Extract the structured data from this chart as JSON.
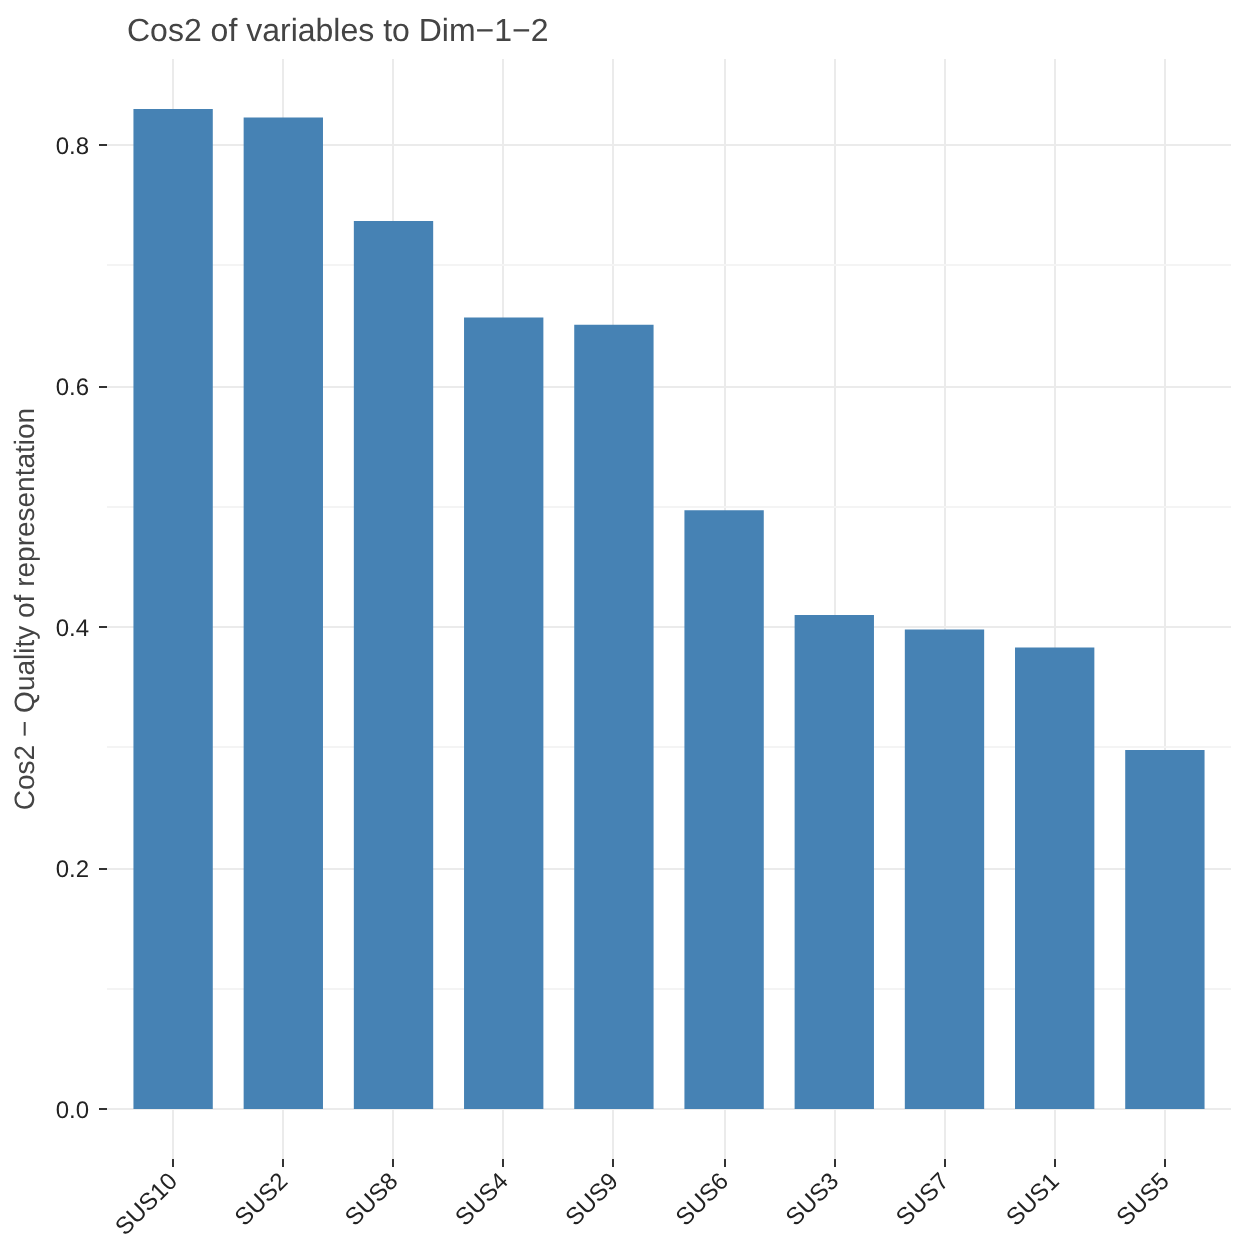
{
  "chart_data": {
    "type": "bar",
    "title": "Cos2 of variables to Dim−1−2",
    "ylabel": "Cos2 − Quality of representation",
    "categories": [
      "SUS10",
      "SUS2",
      "SUS8",
      "SUS4",
      "SUS9",
      "SUS6",
      "SUS3",
      "SUS7",
      "SUS1",
      "SUS5"
    ],
    "values": [
      0.83,
      0.823,
      0.737,
      0.657,
      0.651,
      0.497,
      0.41,
      0.398,
      0.383,
      0.298
    ],
    "color": "#4682b4",
    "ylim": [
      -0.0415,
      0.8715
    ],
    "yticks": [
      {
        "value": 0,
        "label": "0.0"
      },
      0.2,
      0.4,
      0.6,
      0.8
    ],
    "grid": true
  }
}
